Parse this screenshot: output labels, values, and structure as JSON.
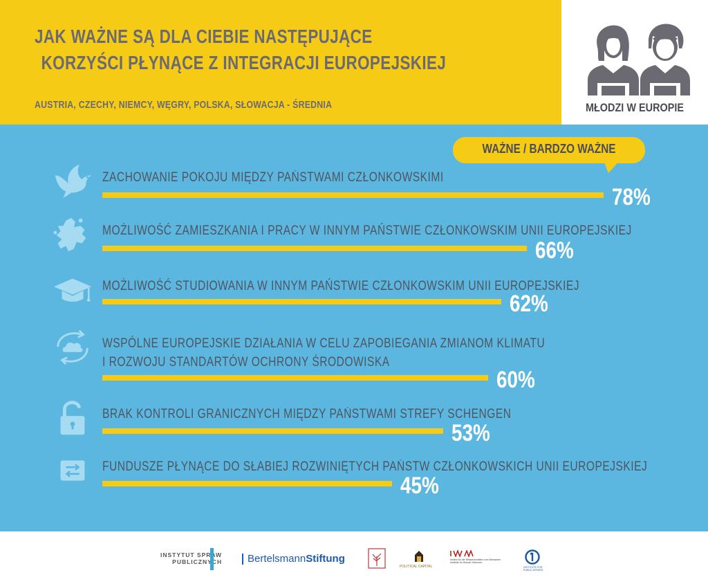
{
  "header": {
    "title_line1": "JAK WAŻNE SĄ DLA CIEBIE NASTĘPUJĄCE",
    "title_line2": "KORZYŚCI PŁYNĄCE Z INTEGRACJI EUROPEJSKIEJ",
    "subtitle": "AUSTRIA, CZECHY, NIEMCY, WĘGRY, POLSKA, SŁOWACJA - ŚREDNIA"
  },
  "badge": {
    "label": "MŁODZI W EUROPIE",
    "icons": [
      "young-woman-icon",
      "young-man-icon"
    ]
  },
  "legend_bubble": "WAŻNE / BARDZO WAŻNE",
  "colors": {
    "yellow": "#f5cb16",
    "blue": "#5cb7e0",
    "text_gray": "#6b6a72",
    "icon_light": "#a6dbf1"
  },
  "chart_data": {
    "type": "bar",
    "title": "JAK WAŻNE SĄ DLA CIEBIE NASTĘPUJĄCE KORZYŚCI PŁYNĄCE Z INTEGRACJI EUROPEJSKIEJ",
    "subtitle": "AUSTRIA, CZECHY, NIEMCY, WĘGRY, POLSKA, SŁOWACJA - ŚREDNIA",
    "series_label": "WAŻNE / BARDZO WAŻNE",
    "orientation": "horizontal",
    "unit": "%",
    "categories": [
      "ZACHOWANIE POKOJU MIĘDZY PAŃSTWAMI CZŁONKOWSKIMI",
      "MOŻLIWOŚĆ ZAMIESZKANIA I PRACY W INNYM PAŃSTWIE CZŁONKOWSKIM UNII EUROPEJSKIEJ",
      "MOŻLIWOŚĆ STUDIOWANIA W INNYM PAŃSTWIE CZŁONKOWSKIM UNII EUROPEJSKIEJ",
      "WSPÓLNE EUROPEJSKIE DZIAŁANIA W CELU ZAPOBIEGANIA ZMIANOM KLIMATU I ROZWOJU STANDARTÓW OCHRONY ŚRODOWISKA",
      "BRAK KONTROLI GRANICZNYCH MIĘDZY PAŃSTWAMI STREFY SCHENGEN",
      "FUNDUSZE PŁYNĄCE DO SŁABIEJ ROZWINIĘTYCH PAŃSTW CZŁONKOWSKICH UNII EUROPEJSKIEJ"
    ],
    "values": [
      78,
      66,
      62,
      60,
      53,
      45
    ],
    "value_labels": [
      "78%",
      "66%",
      "62%",
      "60%",
      "53%",
      "45%"
    ],
    "xlim": [
      0,
      100
    ],
    "grid": false
  },
  "rows": [
    {
      "lines": [
        "ZACHOWANIE POKOJU MIĘDZY PAŃSTWAMI CZŁONKOWSKIMI"
      ],
      "icon": "dove-icon"
    },
    {
      "lines": [
        "MOŻLIWOŚĆ ZAMIESZKANIA I PRACY W INNYM PAŃSTWIE CZŁONKOWSKIM UNII EUROPEJSKIEJ"
      ],
      "icon": "europe-map-icon"
    },
    {
      "lines": [
        "MOŻLIWOŚĆ STUDIOWANIA W INNYM PAŃSTWIE CZŁONKOWSKIM UNII EUROPEJSKIEJ"
      ],
      "icon": "graduation-cap-icon"
    },
    {
      "lines": [
        "WSPÓLNE EUROPEJSKIE DZIAŁANIA W CELU ZAPOBIEGANIA ZMIANOM KLIMATU",
        "I ROZWOJU STANDARTÓW OCHRONY ŚRODOWISKA"
      ],
      "icon": "cloud-cycle-icon"
    },
    {
      "lines": [
        "BRAK KONTROLI GRANICZNYCH MIĘDZY PAŃSTWAMI STREFY SCHENGEN"
      ],
      "icon": "open-padlock-icon"
    },
    {
      "lines": [
        "FUNDUSZE PŁYNĄCE DO SŁABIEJ ROZWINIĘTYCH PAŃSTW CZŁONKOWSKICH UNII EUROPEJSKIEJ"
      ],
      "icon": "transfer-arrows-icon"
    }
  ],
  "footer": {
    "logo_isp_line1": "INSTYTUT SPRAW",
    "logo_isp_line2": "PUBLICZNYCH",
    "logo_bs_regular": "Bertelsmann",
    "logo_bs_bold": "Stiftung",
    "logo_pc": "POLITICAL CAPITAL",
    "logo_iwm_line1": "Institut für die Wissenschaften vom Menschen",
    "logo_iwm_line2": "Institute for Human Sciences",
    "logo_ivo": "INSTITUTE FOR PUBLIC AFFAIRS"
  }
}
